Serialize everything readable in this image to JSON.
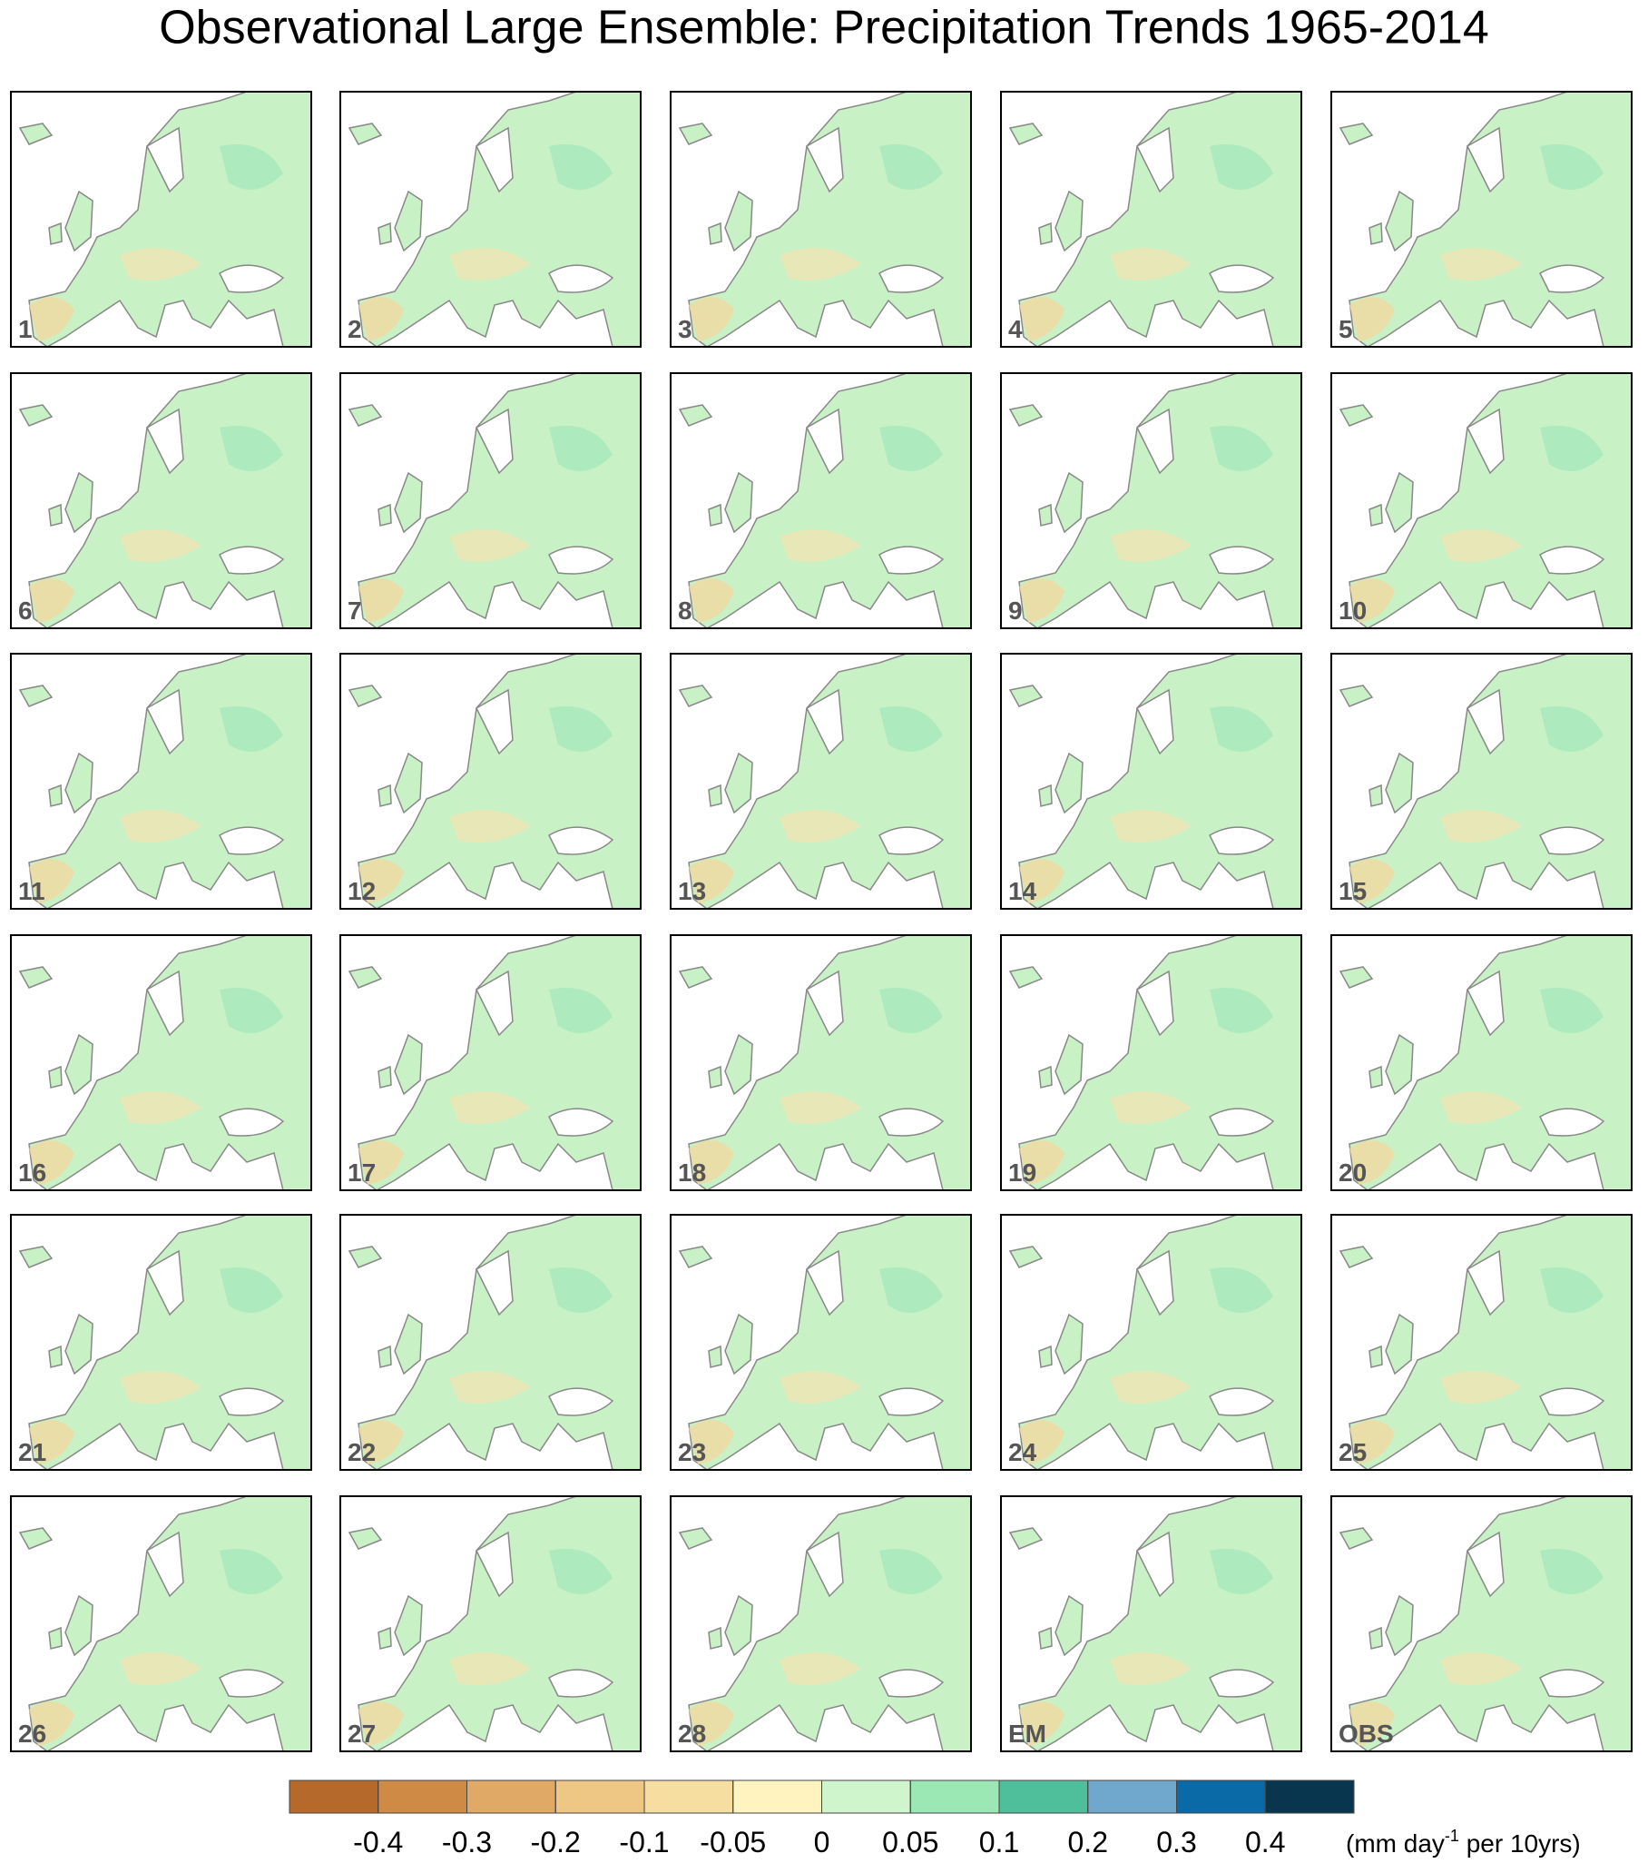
{
  "title": "Observational Large Ensemble: Precipitation Trends 1965-2014",
  "panels": [
    "1",
    "2",
    "3",
    "4",
    "5",
    "6",
    "7",
    "8",
    "9",
    "10",
    "11",
    "12",
    "13",
    "14",
    "15",
    "16",
    "17",
    "18",
    "19",
    "20",
    "21",
    "22",
    "23",
    "24",
    "25",
    "26",
    "27",
    "28",
    "EM",
    "OBS"
  ],
  "colorbar": {
    "levels": [
      -0.4,
      -0.3,
      -0.2,
      -0.1,
      -0.05,
      0,
      0.05,
      0.1,
      0.2,
      0.3,
      0.4
    ],
    "colors": [
      "#b5692a",
      "#cf8a45",
      "#e0a965",
      "#efc784",
      "#f5de9f",
      "#fff3c0",
      "#cff5cc",
      "#9be8b4",
      "#4fbf9b",
      "#6fa8cc",
      "#0a6aa8",
      "#08364f"
    ],
    "unit": {
      "before": "(mm day",
      "sup": "-1",
      "after": " per 10yrs)"
    }
  }
}
